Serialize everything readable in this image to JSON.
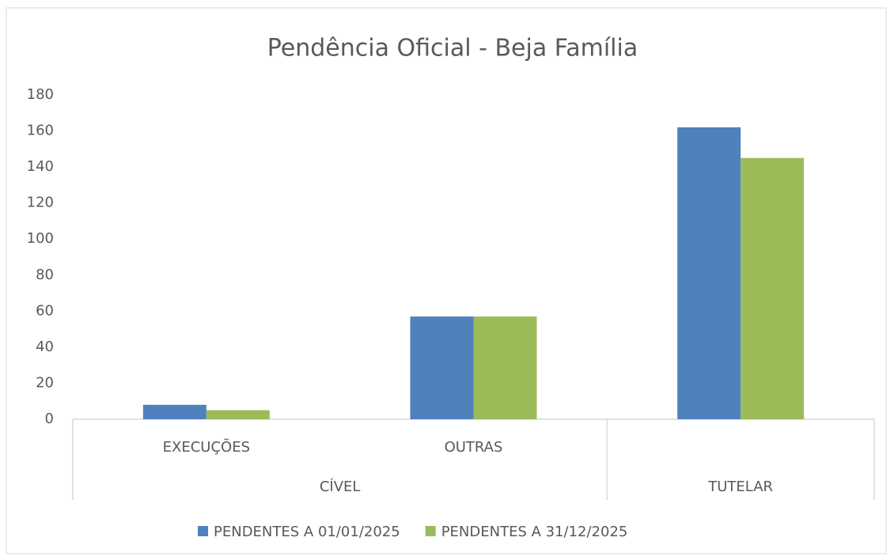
{
  "chart_data": {
    "type": "bar",
    "title": "Pendência Oficial - Beja Família",
    "categories": [
      "EXECUÇÕES",
      "OUTRAS",
      null
    ],
    "groups": [
      {
        "label": "CÍVEL",
        "span": 2
      },
      {
        "label": "TUTELAR",
        "span": 1
      }
    ],
    "series": [
      {
        "name": "PENDENTES A 01/01/2025",
        "color": "#4f81bd",
        "values": [
          8,
          57,
          162
        ]
      },
      {
        "name": "PENDENTES A 31/12/2025",
        "color": "#9bbb59",
        "values": [
          5,
          57,
          145
        ]
      }
    ],
    "ylim": [
      0,
      180
    ],
    "yticks": [
      0,
      20,
      40,
      60,
      80,
      100,
      120,
      140,
      160,
      180
    ],
    "grid": false,
    "legend": "bottom"
  }
}
